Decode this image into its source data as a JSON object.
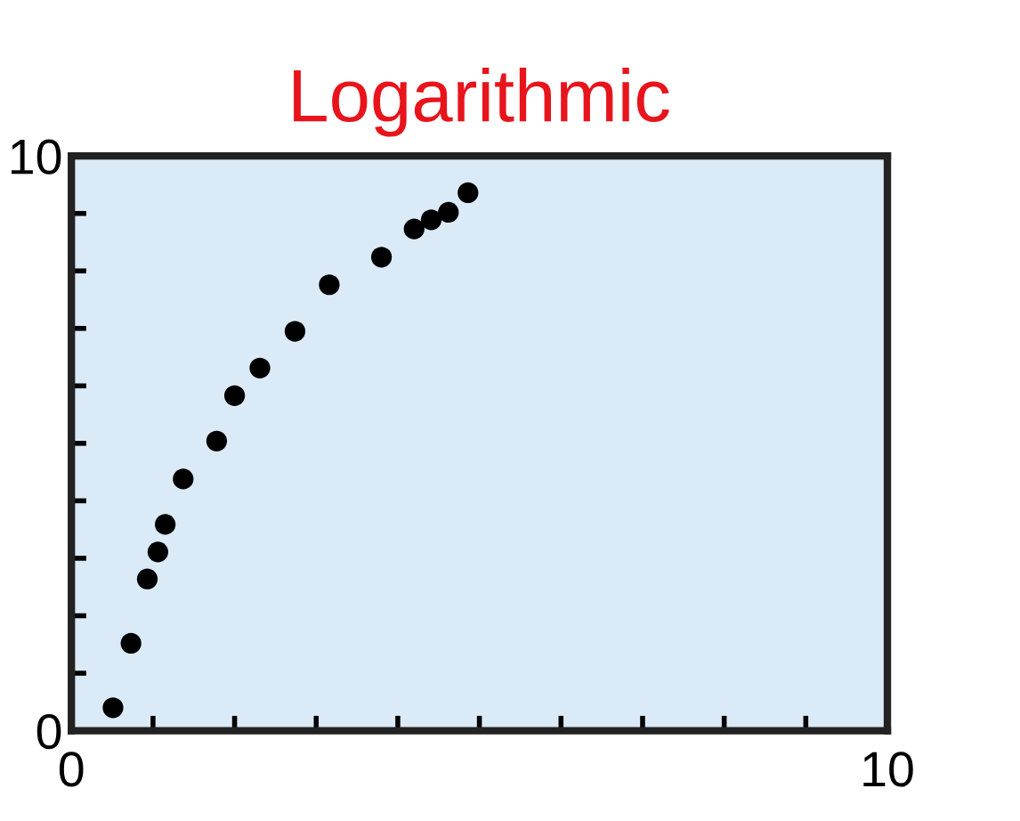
{
  "chart_data": {
    "type": "scatter",
    "title": "Logarithmic",
    "x": [
      0.51,
      0.73,
      0.93,
      1.06,
      1.15,
      1.37,
      1.78,
      2.0,
      2.31,
      2.74,
      3.16,
      3.8,
      4.2,
      4.41,
      4.62,
      4.86
    ],
    "series": [
      {
        "color": "#000000",
        "values": [
          0.4,
          1.52,
          2.64,
          3.11,
          3.59,
          4.38,
          5.04,
          5.83,
          6.31,
          6.95,
          7.76,
          8.24,
          8.73,
          8.89,
          9.02,
          9.36
        ]
      }
    ],
    "xlim": [
      0,
      10
    ],
    "ylim": [
      0,
      10
    ],
    "xticks": [
      {
        "value": 0,
        "label": "0"
      },
      {
        "value": 1,
        "label": null
      },
      {
        "value": 2,
        "label": null
      },
      {
        "value": 3,
        "label": null
      },
      {
        "value": 4,
        "label": null
      },
      {
        "value": 5,
        "label": null
      },
      {
        "value": 6,
        "label": null
      },
      {
        "value": 7,
        "label": null
      },
      {
        "value": 8,
        "label": null
      },
      {
        "value": 9,
        "label": null
      },
      {
        "value": 10,
        "label": "10"
      }
    ],
    "yticks": [
      {
        "value": 0,
        "label": "0"
      },
      {
        "value": 1,
        "label": null
      },
      {
        "value": 2,
        "label": null
      },
      {
        "value": 3,
        "label": null
      },
      {
        "value": 4,
        "label": null
      },
      {
        "value": 5,
        "label": null
      },
      {
        "value": 6,
        "label": null
      },
      {
        "value": 7,
        "label": null
      },
      {
        "value": 8,
        "label": null
      },
      {
        "value": 9,
        "label": null
      },
      {
        "value": 10,
        "label": "10"
      }
    ],
    "grid": false,
    "marker": "circle"
  }
}
